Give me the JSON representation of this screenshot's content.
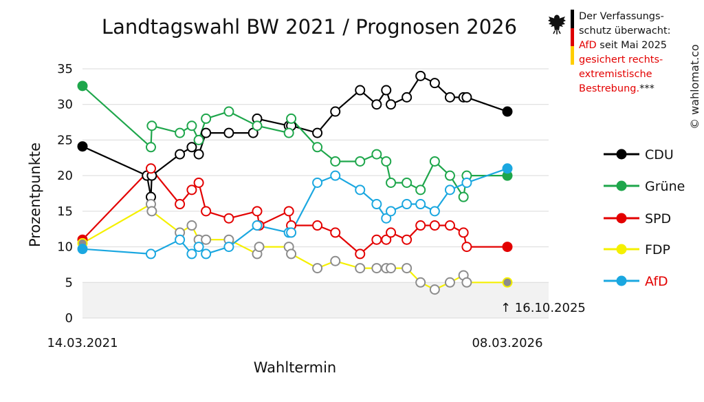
{
  "title": "Landtagswahl BW 2021 / Prognosen 2026",
  "notice": {
    "line1": "Der Verfassungs-",
    "line2": "schutz überwacht:",
    "line3_red": "AfD",
    "line3_rest": " seit Mai 2025",
    "line4": "gesichert rechts-",
    "line5": "extremistische",
    "line6_red": "Bestrebung.",
    "line6_rest": "***"
  },
  "copyright": "© wahlomat.co",
  "colors": {
    "CDU": "#000000",
    "Grüne": "#1ea64b",
    "SPD": "#e30000",
    "FDP": "#f5f000",
    "AfD": "#1aa7e0",
    "AfD_label": "#e30000",
    "marker_hollow_fill": "#ffffff",
    "marker_grey": "#8c8c8c",
    "gridline": "#d9d9d9",
    "band": "#f2f2f2"
  },
  "chart_data": {
    "type": "line",
    "ylabel": "Prozentpunkte",
    "xlabel": "Wahltermin",
    "ylim": [
      0,
      35
    ],
    "yticks": [
      0,
      5,
      10,
      15,
      20,
      25,
      30,
      35
    ],
    "x_start_label": "14.03.2021",
    "x_end_label": "08.03.2026",
    "x_start": "2021-03-14",
    "x_end": "2026-03-08",
    "annotation": "↑ 16.10.2025",
    "shaded_band": [
      0,
      5
    ],
    "grid": true,
    "legend_position": "right",
    "series": [
      {
        "name": "CDU",
        "points": [
          {
            "x": "2021-03-14",
            "y": 24.1
          },
          {
            "x": "2021-12-15",
            "y": 20
          },
          {
            "x": "2022-01-01",
            "y": 17
          },
          {
            "x": "2022-01-05",
            "y": 20
          },
          {
            "x": "2022-05-05",
            "y": 23
          },
          {
            "x": "2022-06-25",
            "y": 24
          },
          {
            "x": "2022-07-25",
            "y": 23
          },
          {
            "x": "2022-08-25",
            "y": 26
          },
          {
            "x": "2022-12-01",
            "y": 26
          },
          {
            "x": "2023-03-15",
            "y": 26
          },
          {
            "x": "2023-04-01",
            "y": 28
          },
          {
            "x": "2023-08-15",
            "y": 27
          },
          {
            "x": "2023-08-25",
            "y": 27
          },
          {
            "x": "2023-12-15",
            "y": 26
          },
          {
            "x": "2024-03-01",
            "y": 29
          },
          {
            "x": "2024-06-15",
            "y": 32
          },
          {
            "x": "2024-08-25",
            "y": 30
          },
          {
            "x": "2024-10-05",
            "y": 32
          },
          {
            "x": "2024-10-25",
            "y": 30
          },
          {
            "x": "2025-01-01",
            "y": 31
          },
          {
            "x": "2025-03-01",
            "y": 34
          },
          {
            "x": "2025-05-01",
            "y": 33
          },
          {
            "x": "2025-07-05",
            "y": 31
          },
          {
            "x": "2025-09-01",
            "y": 31
          },
          {
            "x": "2025-09-15",
            "y": 31
          },
          {
            "x": "2026-03-08",
            "y": 29
          }
        ]
      },
      {
        "name": "Grüne",
        "points": [
          {
            "x": "2021-03-14",
            "y": 32.6
          },
          {
            "x": "2022-01-01",
            "y": 24
          },
          {
            "x": "2022-01-05",
            "y": 27
          },
          {
            "x": "2022-05-05",
            "y": 26
          },
          {
            "x": "2022-06-25",
            "y": 27
          },
          {
            "x": "2022-07-25",
            "y": 25
          },
          {
            "x": "2022-08-25",
            "y": 28
          },
          {
            "x": "2022-12-01",
            "y": 29
          },
          {
            "x": "2023-04-01",
            "y": 27
          },
          {
            "x": "2023-08-15",
            "y": 26
          },
          {
            "x": "2023-08-25",
            "y": 28
          },
          {
            "x": "2023-12-15",
            "y": 24
          },
          {
            "x": "2024-03-01",
            "y": 22
          },
          {
            "x": "2024-06-15",
            "y": 22
          },
          {
            "x": "2024-08-25",
            "y": 23
          },
          {
            "x": "2024-10-05",
            "y": 22
          },
          {
            "x": "2024-10-25",
            "y": 19
          },
          {
            "x": "2025-01-01",
            "y": 19
          },
          {
            "x": "2025-03-01",
            "y": 18
          },
          {
            "x": "2025-05-01",
            "y": 22
          },
          {
            "x": "2025-07-05",
            "y": 20
          },
          {
            "x": "2025-09-01",
            "y": 17
          },
          {
            "x": "2025-09-15",
            "y": 20
          },
          {
            "x": "2026-03-08",
            "y": 20
          }
        ]
      },
      {
        "name": "SPD",
        "points": [
          {
            "x": "2021-03-14",
            "y": 11
          },
          {
            "x": "2022-01-01",
            "y": 21
          },
          {
            "x": "2022-05-05",
            "y": 16
          },
          {
            "x": "2022-06-25",
            "y": 18
          },
          {
            "x": "2022-07-25",
            "y": 19
          },
          {
            "x": "2022-08-25",
            "y": 15
          },
          {
            "x": "2022-12-01",
            "y": 14
          },
          {
            "x": "2023-04-01",
            "y": 15
          },
          {
            "x": "2023-04-10",
            "y": 13
          },
          {
            "x": "2023-08-15",
            "y": 15
          },
          {
            "x": "2023-08-25",
            "y": 13
          },
          {
            "x": "2023-12-15",
            "y": 13
          },
          {
            "x": "2024-03-01",
            "y": 12
          },
          {
            "x": "2024-06-15",
            "y": 9
          },
          {
            "x": "2024-08-25",
            "y": 11
          },
          {
            "x": "2024-10-05",
            "y": 11
          },
          {
            "x": "2024-10-25",
            "y": 12
          },
          {
            "x": "2025-01-01",
            "y": 11
          },
          {
            "x": "2025-03-01",
            "y": 13
          },
          {
            "x": "2025-05-01",
            "y": 13
          },
          {
            "x": "2025-07-05",
            "y": 13
          },
          {
            "x": "2025-09-01",
            "y": 12
          },
          {
            "x": "2025-09-15",
            "y": 10
          },
          {
            "x": "2026-03-08",
            "y": 10
          }
        ]
      },
      {
        "name": "FDP",
        "points": [
          {
            "x": "2021-03-14",
            "y": 10.5
          },
          {
            "x": "2022-01-01",
            "y": 16
          },
          {
            "x": "2022-01-05",
            "y": 15
          },
          {
            "x": "2022-05-05",
            "y": 12
          },
          {
            "x": "2022-06-25",
            "y": 13
          },
          {
            "x": "2022-07-25",
            "y": 11
          },
          {
            "x": "2022-08-25",
            "y": 11
          },
          {
            "x": "2022-12-01",
            "y": 11
          },
          {
            "x": "2023-04-01",
            "y": 9
          },
          {
            "x": "2023-04-10",
            "y": 10
          },
          {
            "x": "2023-08-15",
            "y": 10
          },
          {
            "x": "2023-08-25",
            "y": 9
          },
          {
            "x": "2023-12-15",
            "y": 7
          },
          {
            "x": "2024-03-01",
            "y": 8
          },
          {
            "x": "2024-06-15",
            "y": 7
          },
          {
            "x": "2024-08-25",
            "y": 7
          },
          {
            "x": "2024-10-05",
            "y": 7
          },
          {
            "x": "2024-10-25",
            "y": 7
          },
          {
            "x": "2025-01-01",
            "y": 7
          },
          {
            "x": "2025-03-01",
            "y": 5
          },
          {
            "x": "2025-05-01",
            "y": 4
          },
          {
            "x": "2025-07-05",
            "y": 5
          },
          {
            "x": "2025-09-01",
            "y": 6
          },
          {
            "x": "2025-09-15",
            "y": 5
          },
          {
            "x": "2026-03-08",
            "y": 5
          }
        ]
      },
      {
        "name": "AfD",
        "points": [
          {
            "x": "2021-03-14",
            "y": 9.7
          },
          {
            "x": "2022-01-01",
            "y": 9
          },
          {
            "x": "2022-05-05",
            "y": 11
          },
          {
            "x": "2022-06-25",
            "y": 9
          },
          {
            "x": "2022-07-25",
            "y": 10
          },
          {
            "x": "2022-08-25",
            "y": 9
          },
          {
            "x": "2022-12-01",
            "y": 10
          },
          {
            "x": "2023-04-01",
            "y": 13
          },
          {
            "x": "2023-08-15",
            "y": 12
          },
          {
            "x": "2023-08-25",
            "y": 12
          },
          {
            "x": "2023-12-15",
            "y": 19
          },
          {
            "x": "2024-03-01",
            "y": 20
          },
          {
            "x": "2024-06-15",
            "y": 18
          },
          {
            "x": "2024-08-25",
            "y": 16
          },
          {
            "x": "2024-10-05",
            "y": 14
          },
          {
            "x": "2024-10-25",
            "y": 15
          },
          {
            "x": "2025-01-01",
            "y": 16
          },
          {
            "x": "2025-03-01",
            "y": 16
          },
          {
            "x": "2025-05-01",
            "y": 15
          },
          {
            "x": "2025-07-05",
            "y": 18
          },
          {
            "x": "2025-09-15",
            "y": 19
          },
          {
            "x": "2026-03-08",
            "y": 21
          }
        ]
      }
    ]
  }
}
